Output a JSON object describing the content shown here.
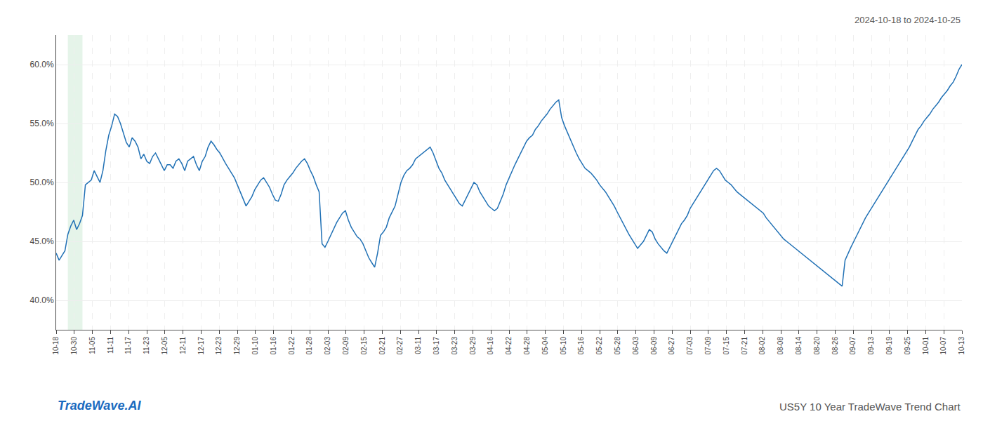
{
  "chart_data": {
    "type": "line",
    "annotations": [
      "2024-10-18 to 2024-10-25",
      "TradeWave.AI",
      "US5Y 10 Year TradeWave Trend Chart"
    ],
    "color": "#2171b5",
    "grid": true,
    "highlight": {
      "start": 4,
      "end": 9,
      "color": "#d4edda"
    },
    "xlim": [
      0,
      310
    ],
    "xticks": [
      {
        "value": 0,
        "label": "10-18"
      },
      {
        "value": 6.2,
        "label": "10-30"
      },
      {
        "value": 12.4,
        "label": "11-05"
      },
      {
        "value": 18.6,
        "label": "11-11"
      },
      {
        "value": 24.8,
        "label": "11-17"
      },
      {
        "value": 31,
        "label": "11-23"
      },
      {
        "value": 37.2,
        "label": "12-05"
      },
      {
        "value": 43.4,
        "label": "12-11"
      },
      {
        "value": 49.6,
        "label": "12-17"
      },
      {
        "value": 55.8,
        "label": "12-23"
      },
      {
        "value": 62,
        "label": "12-29"
      },
      {
        "value": 68.2,
        "label": "01-10"
      },
      {
        "value": 74.4,
        "label": "01-16"
      },
      {
        "value": 80.6,
        "label": "01-22"
      },
      {
        "value": 86.8,
        "label": "01-28"
      },
      {
        "value": 93,
        "label": "02-03"
      },
      {
        "value": 99.2,
        "label": "02-09"
      },
      {
        "value": 105.4,
        "label": "02-15"
      },
      {
        "value": 111.6,
        "label": "02-21"
      },
      {
        "value": 117.8,
        "label": "02-27"
      },
      {
        "value": 124,
        "label": "03-11"
      },
      {
        "value": 130.2,
        "label": "03-17"
      },
      {
        "value": 136.4,
        "label": "03-23"
      },
      {
        "value": 142.6,
        "label": "03-29"
      },
      {
        "value": 148.8,
        "label": "04-16"
      },
      {
        "value": 155,
        "label": "04-22"
      },
      {
        "value": 161.2,
        "label": "04-28"
      },
      {
        "value": 167.4,
        "label": "05-04"
      },
      {
        "value": 173.6,
        "label": "05-10"
      },
      {
        "value": 179.8,
        "label": "05-16"
      },
      {
        "value": 186,
        "label": "05-22"
      },
      {
        "value": 192.2,
        "label": "05-28"
      },
      {
        "value": 198.4,
        "label": "06-03"
      },
      {
        "value": 204.6,
        "label": "06-09"
      },
      {
        "value": 210.8,
        "label": "06-27"
      },
      {
        "value": 217,
        "label": "07-03"
      },
      {
        "value": 223.2,
        "label": "07-09"
      },
      {
        "value": 229.4,
        "label": "07-15"
      },
      {
        "value": 235.6,
        "label": "07-21"
      },
      {
        "value": 241.8,
        "label": "08-02"
      },
      {
        "value": 248,
        "label": "08-08"
      },
      {
        "value": 254.2,
        "label": "08-14"
      },
      {
        "value": 260.4,
        "label": "08-20"
      },
      {
        "value": 266.6,
        "label": "08-26"
      },
      {
        "value": 272.8,
        "label": "09-07"
      },
      {
        "value": 279,
        "label": "09-13"
      },
      {
        "value": 285.2,
        "label": "09-19"
      },
      {
        "value": 291.4,
        "label": "09-25"
      },
      {
        "value": 297.6,
        "label": "10-01"
      },
      {
        "value": 303.8,
        "label": "10-07"
      },
      {
        "value": 310,
        "label": "10-13"
      }
    ],
    "ylim": [
      0.375,
      0.625
    ],
    "yticks": [
      {
        "value": 0.4,
        "label": "40.0%"
      },
      {
        "value": 0.45,
        "label": "45.0%"
      },
      {
        "value": 0.5,
        "label": "50.0%"
      },
      {
        "value": 0.55,
        "label": "55.0%"
      },
      {
        "value": 0.6,
        "label": "60.0%"
      }
    ],
    "values": [
      0.44,
      0.434,
      0.438,
      0.442,
      0.456,
      0.463,
      0.468,
      0.46,
      0.465,
      0.472,
      0.498,
      0.5,
      0.502,
      0.51,
      0.505,
      0.5,
      0.51,
      0.527,
      0.54,
      0.548,
      0.558,
      0.556,
      0.55,
      0.542,
      0.534,
      0.53,
      0.538,
      0.535,
      0.53,
      0.52,
      0.524,
      0.518,
      0.516,
      0.522,
      0.525,
      0.52,
      0.515,
      0.51,
      0.515,
      0.515,
      0.512,
      0.518,
      0.52,
      0.516,
      0.51,
      0.518,
      0.52,
      0.522,
      0.515,
      0.51,
      0.518,
      0.522,
      0.53,
      0.535,
      0.532,
      0.528,
      0.525,
      0.52,
      0.516,
      0.512,
      0.508,
      0.504,
      0.498,
      0.492,
      0.486,
      0.48,
      0.484,
      0.488,
      0.494,
      0.498,
      0.502,
      0.504,
      0.5,
      0.496,
      0.49,
      0.485,
      0.484,
      0.49,
      0.498,
      0.502,
      0.505,
      0.508,
      0.512,
      0.515,
      0.518,
      0.52,
      0.516,
      0.51,
      0.505,
      0.498,
      0.492,
      0.448,
      0.445,
      0.45,
      0.455,
      0.46,
      0.466,
      0.47,
      0.474,
      0.476,
      0.468,
      0.462,
      0.458,
      0.454,
      0.452,
      0.448,
      0.442,
      0.436,
      0.432,
      0.428,
      0.44,
      0.455,
      0.458,
      0.462,
      0.47,
      0.475,
      0.48,
      0.49,
      0.5,
      0.506,
      0.51,
      0.512,
      0.515,
      0.52,
      0.522,
      0.524,
      0.526,
      0.528,
      0.53,
      0.525,
      0.518,
      0.512,
      0.508,
      0.502,
      0.498,
      0.494,
      0.49,
      0.486,
      0.482,
      0.48,
      0.485,
      0.49,
      0.495,
      0.5,
      0.498,
      0.492,
      0.488,
      0.484,
      0.48,
      0.478,
      0.476,
      0.478,
      0.484,
      0.49,
      0.498,
      0.504,
      0.51,
      0.515,
      0.52,
      0.525,
      0.53,
      0.535,
      0.538,
      0.54,
      0.545,
      0.548,
      0.552,
      0.555,
      0.558,
      0.562,
      0.565,
      0.568,
      0.57,
      0.555,
      0.548,
      0.542,
      0.536,
      0.53,
      0.525,
      0.52,
      0.516,
      0.512,
      0.51,
      0.508,
      0.505,
      0.502,
      0.498,
      0.495,
      0.492,
      0.488,
      0.484,
      0.48,
      0.475,
      0.47,
      0.465,
      0.46,
      0.456,
      0.452,
      0.448,
      0.444,
      0.447,
      0.45,
      0.455,
      0.46,
      0.458,
      0.452,
      0.448,
      0.445,
      0.442,
      0.44,
      0.445,
      0.45,
      0.455,
      0.46,
      0.465,
      0.468,
      0.472,
      0.478,
      0.482,
      0.486,
      0.49,
      0.494,
      0.498,
      0.502,
      0.506,
      0.51,
      0.512,
      0.51,
      0.506,
      0.502,
      0.5,
      0.498,
      0.495,
      0.492,
      0.49,
      0.488,
      0.486,
      0.484,
      0.482,
      0.48,
      0.478,
      0.476,
      0.474,
      0.47,
      0.467,
      0.464,
      0.461,
      0.458,
      0.455,
      0.452,
      0.45,
      0.448,
      0.446,
      0.444,
      0.442,
      0.44,
      0.438,
      0.436,
      0.434,
      0.432,
      0.43,
      0.428,
      0.426,
      0.424,
      0.422,
      0.42,
      0.418,
      0.416,
      0.414,
      0.412,
      0.434,
      0.44,
      0.445,
      0.45,
      0.455,
      0.46,
      0.465,
      0.47,
      0.474,
      0.478,
      0.482,
      0.486,
      0.49,
      0.494,
      0.498,
      0.502,
      0.506,
      0.51,
      0.514,
      0.518,
      0.522,
      0.526,
      0.53,
      0.535,
      0.54,
      0.545,
      0.548,
      0.552,
      0.555,
      0.558,
      0.562,
      0.565,
      0.568,
      0.572,
      0.575,
      0.578,
      0.582,
      0.585,
      0.59,
      0.596,
      0.6
    ]
  }
}
